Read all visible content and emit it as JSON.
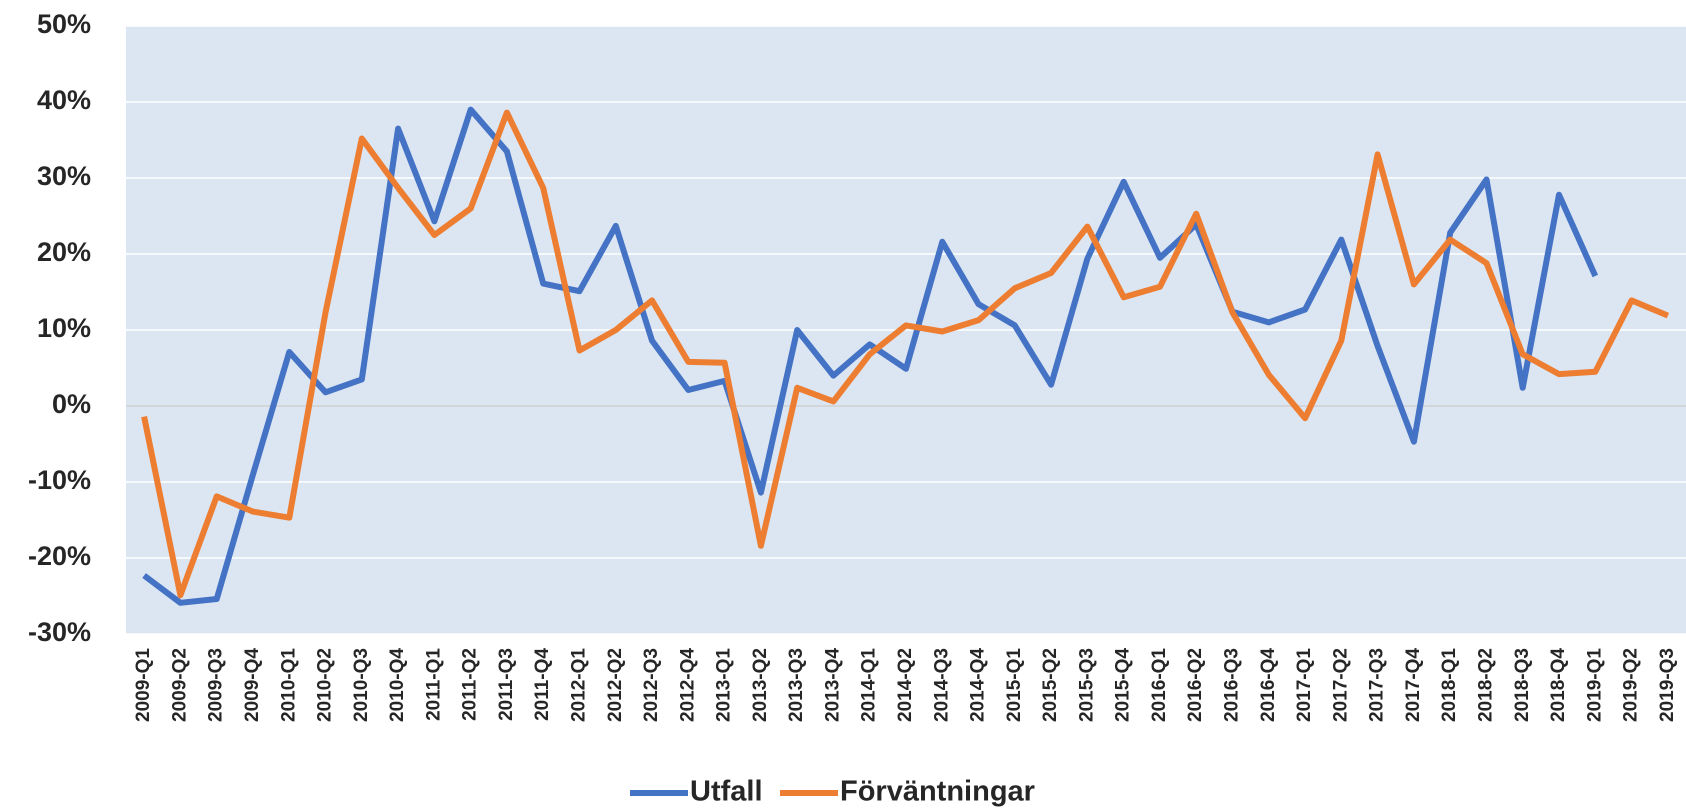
{
  "chart_data": {
    "type": "line",
    "categories": [
      "2009-Q1",
      "2009-Q2",
      "2009-Q3",
      "2009-Q4",
      "2010-Q1",
      "2010-Q2",
      "2010-Q3",
      "2010-Q4",
      "2011-Q1",
      "2011-Q2",
      "2011-Q3",
      "2011-Q4",
      "2012-Q1",
      "2012-Q2",
      "2012-Q3",
      "2012-Q4",
      "2013-Q1",
      "2013-Q2",
      "2013-Q3",
      "2013-Q4",
      "2014-Q1",
      "2014-Q2",
      "2014-Q3",
      "2014-Q4",
      "2015-Q1",
      "2015-Q2",
      "2015-Q3",
      "2015-Q4",
      "2016-Q1",
      "2016-Q2",
      "2016-Q3",
      "2016-Q4",
      "2017-Q1",
      "2017-Q2",
      "2017-Q3",
      "2017-Q4",
      "2018-Q1",
      "2018-Q2",
      "2018-Q3",
      "2018-Q4",
      "2019-Q1",
      "2019-Q2",
      "2019-Q3"
    ],
    "series": [
      {
        "name": "Utfall",
        "color": "#4472c4",
        "values": [
          -22.3,
          -25.9,
          -25.4,
          -9,
          7.1,
          1.8,
          3.5,
          36.5,
          24.3,
          39,
          33.5,
          16.1,
          15.1,
          23.7,
          8.6,
          2.1,
          3.3,
          -11.4,
          10,
          4,
          8.1,
          4.9,
          21.6,
          13.4,
          10.6,
          2.8,
          19.4,
          29.5,
          19.5,
          23.9,
          12.4,
          11,
          12.7,
          21.9,
          7.9,
          -4.7,
          22.8,
          29.8,
          2.4,
          27.8,
          17.1,
          null,
          null
        ]
      },
      {
        "name": "Förväntningar",
        "color": "#ed7d31",
        "values": [
          -1.4,
          -24.9,
          -11.9,
          -13.9,
          -14.7,
          12.3,
          35.2,
          28.7,
          22.5,
          26,
          38.6,
          28.7,
          7.3,
          10,
          13.9,
          5.8,
          5.7,
          -18.4,
          2.4,
          0.6,
          6.8,
          10.6,
          9.8,
          11.3,
          15.5,
          17.5,
          23.6,
          14.3,
          15.7,
          25.3,
          12.3,
          4.1,
          -1.6,
          8.6,
          33.1,
          16,
          21.9,
          18.8,
          6.8,
          4.2,
          4.5,
          13.9,
          11.9
        ]
      }
    ],
    "ylim": [
      -30,
      50
    ],
    "yticks": [
      {
        "value": -30,
        "label": "-30%"
      },
      {
        "value": -20,
        "label": "-20%"
      },
      {
        "value": -10,
        "label": "-10%"
      },
      {
        "value": 0,
        "label": "0%"
      },
      {
        "value": 10,
        "label": "10%"
      },
      {
        "value": 20,
        "label": "20%"
      },
      {
        "value": 30,
        "label": "30%"
      },
      {
        "value": 40,
        "label": "40%"
      },
      {
        "value": 50,
        "label": "50%"
      }
    ],
    "grid": true,
    "legend": "bottom"
  }
}
